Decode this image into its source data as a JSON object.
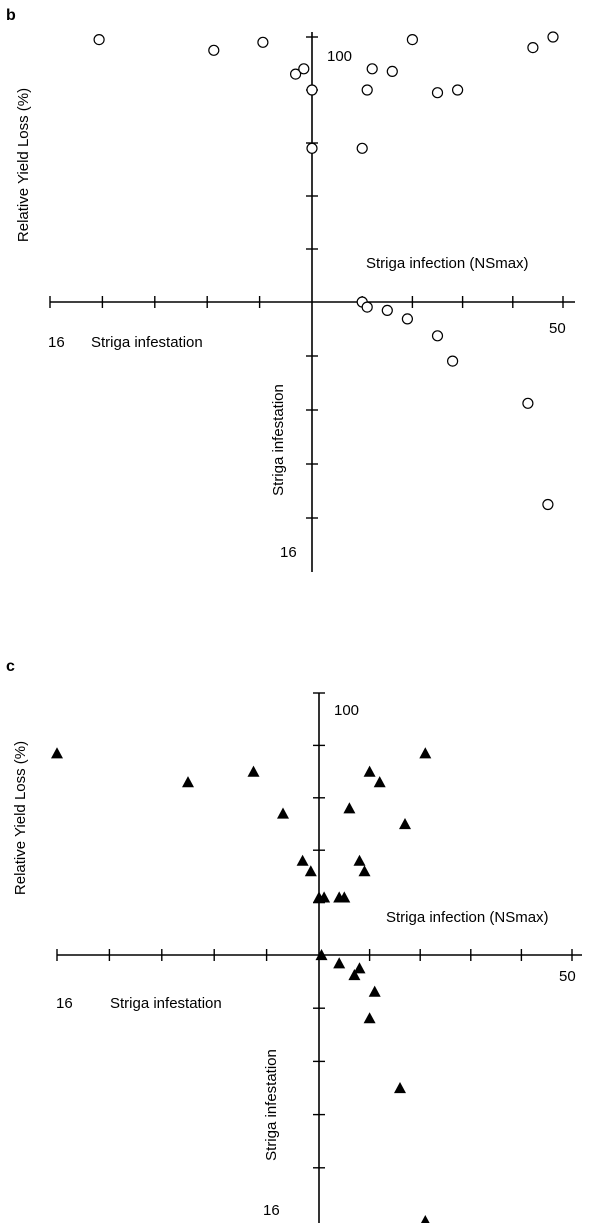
{
  "chart_data": [
    {
      "type": "scatter",
      "panel": "b",
      "marker": "circle-open",
      "labels": {
        "ylabel": "Relative Yield Loss (%)",
        "xlabel_right": "Striga infection (NSmax)",
        "xlabel_left": "Striga infestation",
        "ylabel_bottom": "Striga infestation",
        "y_top": "100",
        "x_right": "50",
        "x_left": "16",
        "y_bottom": "16"
      },
      "quadrants": {
        "upper_left": {
          "x": [
            13,
            6,
            3,
            1,
            0.5,
            0,
            0
          ],
          "y": [
            99,
            95,
            98,
            86,
            88,
            80,
            58
          ]
        },
        "upper_right": {
          "x": [
            12,
            16,
            20,
            29,
            44,
            48,
            11,
            25,
            10
          ],
          "y": [
            88,
            87,
            99,
            80,
            96,
            100,
            80,
            79,
            58
          ]
        },
        "lower_right": {
          "x": [
            10,
            11,
            15,
            19,
            25,
            28,
            43,
            47
          ],
          "y": [
            0,
            0.3,
            0.5,
            1,
            2,
            3.5,
            6,
            12
          ]
        }
      }
    },
    {
      "type": "scatter",
      "panel": "c",
      "marker": "triangle-filled",
      "labels": {
        "ylabel": "Relative Yield Loss (%)",
        "xlabel_right": "Striga infection (NSmax)",
        "xlabel_left": "Striga infestation",
        "ylabel_bottom": "Striga infestation",
        "y_top": "100",
        "x_right": "50",
        "x_left": "16",
        "y_bottom": "16"
      },
      "quadrants": {
        "upper_left": {
          "x": [
            16,
            8,
            4,
            2.2,
            1,
            0.5,
            0
          ],
          "y": [
            77,
            66,
            70,
            54,
            36,
            32,
            22
          ]
        },
        "upper_right": {
          "x": [
            10,
            6,
            21,
            12,
            17,
            8,
            9,
            4,
            1,
            5
          ],
          "y": [
            70,
            56,
            77,
            66,
            50,
            36,
            32,
            22,
            22,
            22
          ]
        },
        "lower_right": {
          "x": [
            0.5,
            4,
            7,
            8,
            11,
            10,
            16,
            21
          ],
          "y": [
            0,
            0.5,
            1.2,
            0.8,
            2.2,
            3.8,
            8,
            16
          ]
        }
      }
    }
  ]
}
